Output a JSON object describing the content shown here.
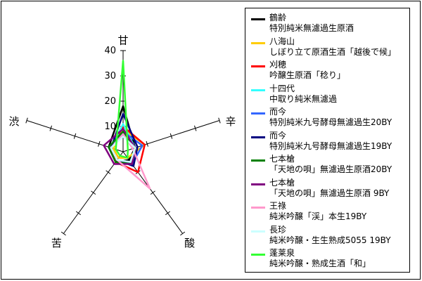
{
  "chart_data": {
    "type": "radar",
    "axes": [
      "甘",
      "辛",
      "酸",
      "苦",
      "渋"
    ],
    "ticks": [
      10,
      20,
      30,
      40
    ],
    "rmax": 40,
    "grid": false,
    "legend_placement": "right",
    "series": [
      {
        "brand": "鶴齢",
        "product": "特別純米無濾過生原酒",
        "color": "#000000",
        "values": [
          18,
          5,
          4,
          5,
          6
        ]
      },
      {
        "brand": "八海山",
        "product": "しぼり立て原酒生酒「越後で候」",
        "color": "#ffcc00",
        "values": [
          9,
          9,
          3,
          3,
          4
        ]
      },
      {
        "brand": "刈穂",
        "product": "吟醸生原酒「稔り」",
        "color": "#ff0000",
        "values": [
          10,
          9,
          10,
          5,
          5
        ]
      },
      {
        "brand": "十四代",
        "product": "中取り純米無濾過",
        "color": "#33ffff",
        "values": [
          11,
          5,
          5,
          4,
          5
        ]
      },
      {
        "brand": "而今",
        "product": "特別純米九号酵母無濾過生20BY",
        "color": "#3366ff",
        "values": [
          8,
          8,
          6,
          4,
          5
        ]
      },
      {
        "brand": "而今",
        "product": "特別純米九号酵母無濾過生19BY",
        "color": "#000080",
        "values": [
          15,
          6,
          7,
          4,
          5
        ]
      },
      {
        "brand": "七本槍",
        "product": "「天地の唄」無濾過生原酒20BY",
        "color": "#008000",
        "values": [
          8,
          5,
          6,
          5,
          6
        ]
      },
      {
        "brand": "七本槍",
        "product": "「天地の唄」無濾過生原酒 9BY",
        "color": "#800080",
        "values": [
          9,
          5,
          6,
          6,
          8
        ]
      },
      {
        "brand": "王祿",
        "product": "純米吟醸「渓」本生19BY",
        "color": "#ff99cc",
        "values": [
          7,
          4,
          18,
          4,
          5
        ]
      },
      {
        "brand": "長珍",
        "product": "純米吟醸・生生熟成5055 19BY",
        "color": "#ccffff",
        "values": [
          6,
          5,
          5,
          4,
          5
        ]
      },
      {
        "brand": "蓬莱泉",
        "product": "純米吟醸・熟成生酒「和」",
        "color": "#33ff33",
        "values": [
          36,
          2,
          3,
          2,
          3
        ]
      }
    ]
  }
}
